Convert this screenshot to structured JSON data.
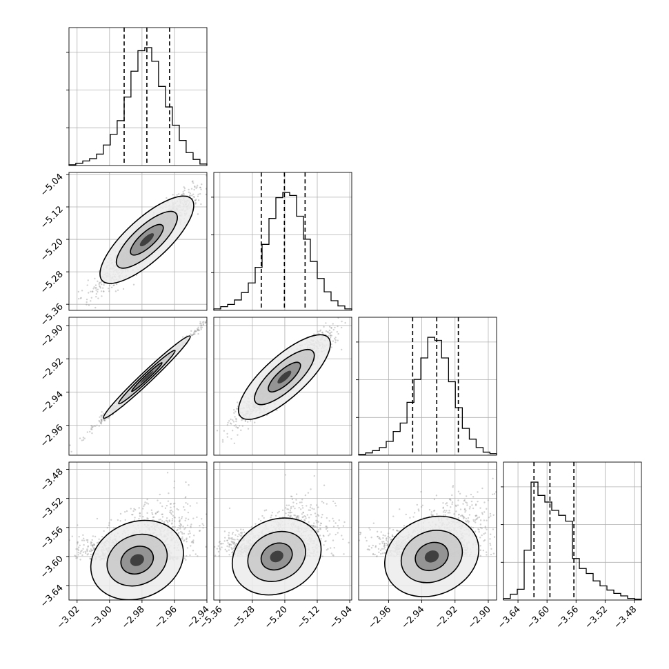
{
  "chart_data": {
    "type": "corner",
    "title": "",
    "grid": true,
    "parameters": [
      {
        "label": "",
        "range": [
          -3.025,
          -2.94
        ],
        "ticks": [
          -3.02,
          -3.0,
          -2.98,
          -2.96,
          -2.94
        ],
        "tick_labels": [
          "−3.02",
          "−3.00",
          "−2.98",
          "−2.96",
          "−2.94"
        ]
      },
      {
        "label": "",
        "range": [
          -5.375,
          -5.035
        ],
        "ticks": [
          -5.36,
          -5.28,
          -5.2,
          -5.12,
          -5.04
        ],
        "tick_labels": [
          "−5.36",
          "−5.28",
          "−5.20",
          "−5.12",
          "−5.04"
        ]
      },
      {
        "label": "",
        "range": [
          -2.978,
          -2.895
        ],
        "ticks": [
          -2.96,
          -2.94,
          -2.92,
          -2.9
        ],
        "tick_labels": [
          "−2.96",
          "−2.94",
          "−2.92",
          "−2.90"
        ]
      },
      {
        "label": "",
        "range": [
          -3.66,
          -3.47
        ],
        "ticks": [
          -3.64,
          -3.6,
          -3.56,
          -3.52,
          -3.48
        ],
        "tick_labels": [
          "−3.64",
          "−3.60",
          "−3.56",
          "−3.52",
          "−3.48"
        ]
      }
    ],
    "histograms": [
      {
        "param": 0,
        "quantiles": [
          -2.991,
          -2.977,
          -2.963
        ],
        "bins": [
          -3.025,
          -3.0208,
          -3.0165,
          -3.0123,
          -3.008,
          -3.0038,
          -2.9995,
          -2.9953,
          -2.991,
          -2.9868,
          -2.9825,
          -2.9783,
          -2.974,
          -2.9698,
          -2.9655,
          -2.9613,
          -2.957,
          -2.9528,
          -2.9485,
          -2.9443,
          -2.94
        ],
        "counts": [
          1,
          3,
          6,
          9,
          15,
          27,
          41,
          59,
          90,
          124,
          151,
          155,
          137,
          104,
          77,
          53,
          33,
          17,
          8,
          2
        ]
      },
      {
        "param": 1,
        "quantiles": [
          -5.258,
          -5.201,
          -5.15
        ],
        "bins": [
          -5.375,
          -5.358,
          -5.341,
          -5.324,
          -5.307,
          -5.29,
          -5.273,
          -5.256,
          -5.239,
          -5.222,
          -5.205,
          -5.188,
          -5.171,
          -5.154,
          -5.137,
          -5.12,
          -5.103,
          -5.086,
          -5.069,
          -5.052,
          -5.035
        ],
        "counts": [
          2,
          5,
          8,
          14,
          24,
          37,
          58,
          89,
          124,
          152,
          159,
          155,
          127,
          96,
          66,
          43,
          25,
          13,
          6,
          2
        ]
      },
      {
        "param": 2,
        "quantiles": [
          -2.9455,
          -2.931,
          -2.918
        ],
        "bins": [
          -2.978,
          -2.9738,
          -2.9697,
          -2.9655,
          -2.9614,
          -2.9572,
          -2.953,
          -2.9489,
          -2.9447,
          -2.9406,
          -2.9364,
          -2.9322,
          -2.9281,
          -2.9239,
          -2.9198,
          -2.9156,
          -2.9114,
          -2.9073,
          -2.9031,
          -2.899,
          -2.895
        ],
        "counts": [
          1,
          3,
          6,
          10,
          18,
          31,
          42,
          69,
          99,
          127,
          154,
          150,
          127,
          96,
          62,
          35,
          21,
          10,
          4,
          2
        ]
      },
      {
        "param": 3,
        "quantiles": [
          -3.618,
          -3.596,
          -3.563
        ],
        "bins": [
          -3.66,
          -3.6505,
          -3.641,
          -3.6315,
          -3.622,
          -3.6125,
          -3.603,
          -3.5935,
          -3.584,
          -3.5745,
          -3.565,
          -3.5555,
          -3.546,
          -3.5365,
          -3.527,
          -3.5175,
          -3.508,
          -3.4985,
          -3.489,
          -3.4795,
          -3.47
        ],
        "counts": [
          2,
          7,
          13,
          60,
          142,
          126,
          118,
          108,
          102,
          95,
          50,
          38,
          32,
          23,
          17,
          12,
          8,
          5,
          2,
          1
        ]
      }
    ],
    "joint": [
      {
        "x_param": 0,
        "y_param": 1,
        "center": [
          -2.977,
          -5.201
        ],
        "sigma": [
          0.014,
          0.055
        ],
        "corr": 0.93
      },
      {
        "x_param": 0,
        "y_param": 2,
        "center": [
          -2.977,
          -2.931
        ],
        "sigma": [
          0.014,
          0.013
        ],
        "corr": 0.995
      },
      {
        "x_param": 1,
        "y_param": 2,
        "center": [
          -5.201,
          -2.931
        ],
        "sigma": [
          0.055,
          0.013
        ],
        "corr": 0.93
      },
      {
        "x_param": 0,
        "y_param": 3,
        "center": [
          -2.983,
          -3.605
        ],
        "sigma": [
          0.012,
          0.022
        ],
        "corr": 0.55,
        "skew": true
      },
      {
        "x_param": 1,
        "y_param": 3,
        "center": [
          -5.22,
          -3.6
        ],
        "sigma": [
          0.045,
          0.022
        ],
        "corr": 0.55,
        "skew": true
      },
      {
        "x_param": 2,
        "y_param": 3,
        "center": [
          -2.934,
          -3.6
        ],
        "sigma": [
          0.012,
          0.022
        ],
        "corr": 0.55,
        "skew": true
      }
    ]
  }
}
